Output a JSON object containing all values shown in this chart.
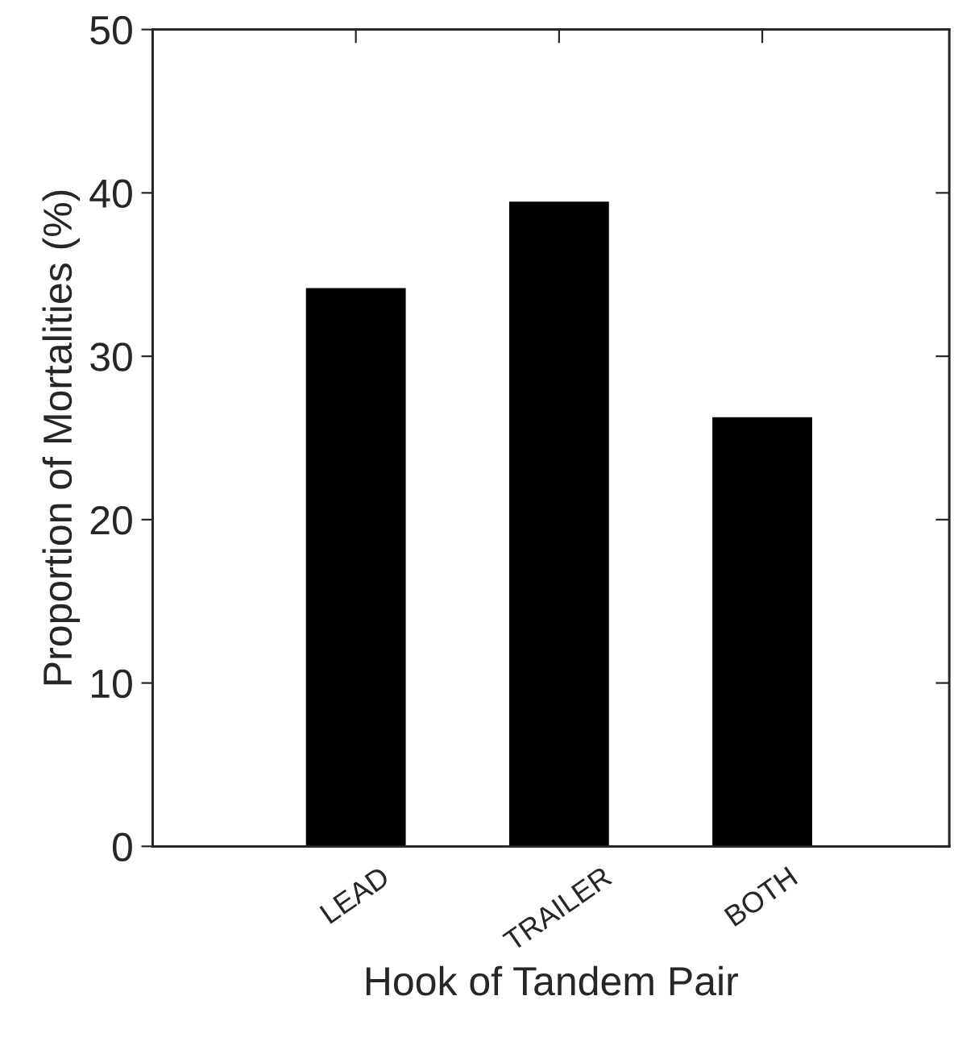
{
  "chart_data": {
    "type": "bar",
    "xlabel": "Hook of Tandem Pair",
    "ylabel": "Proportion of Mortalities (%)",
    "categories": [
      "LEAD",
      "TRAILER",
      "BOTH"
    ],
    "series": [
      {
        "color": "#000000",
        "values": [
          34.1,
          39.4,
          26.2
        ]
      }
    ],
    "ylim": [
      0,
      50
    ],
    "yticks": [
      0,
      10,
      20,
      30,
      40,
      50
    ],
    "grid": false,
    "legend": false
  }
}
